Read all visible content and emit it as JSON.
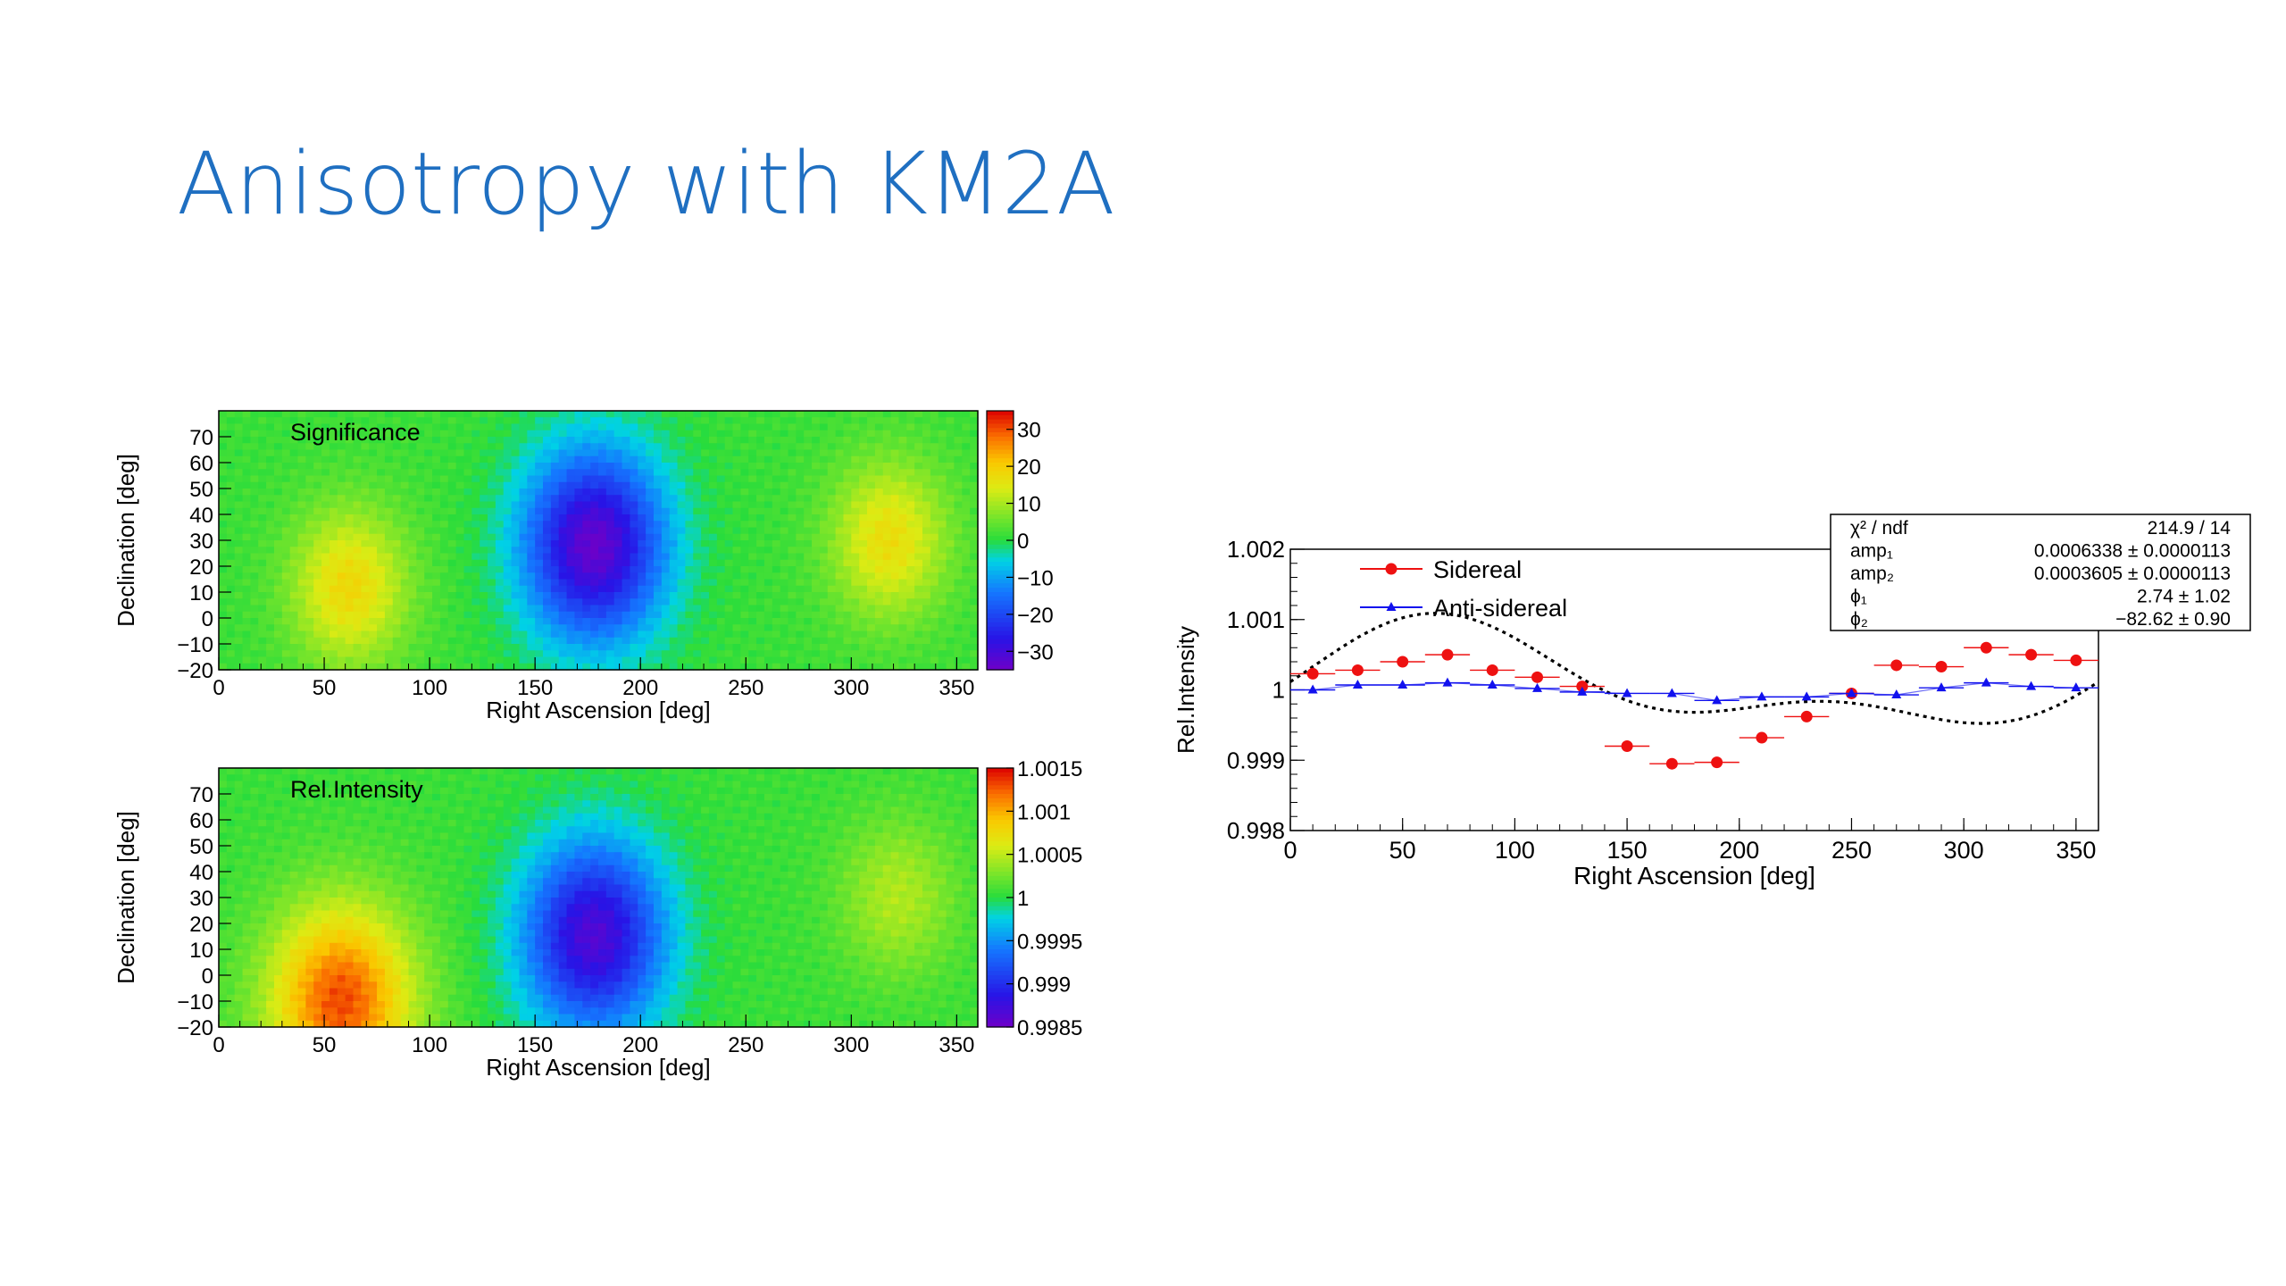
{
  "slide": {
    "title": "Anisotropy with KM2A"
  },
  "chart_data": [
    {
      "type": "heatmap",
      "title": "Significance",
      "xlabel": "Right Ascension [deg]",
      "ylabel": "Declination [deg]",
      "xlim": [
        0,
        360
      ],
      "ylim": [
        -20,
        80
      ],
      "x_ticks": [
        "0",
        "50",
        "100",
        "150",
        "200",
        "250",
        "300",
        "350"
      ],
      "y_ticks": [
        "70",
        "60",
        "50",
        "40",
        "30",
        "20",
        "10",
        "0",
        "−10",
        "−20"
      ],
      "colorbar": {
        "range": [
          -35,
          35
        ],
        "ticks": [
          "30",
          "20",
          "10",
          "0",
          "−10",
          "−20",
          "−30"
        ]
      },
      "features": [
        {
          "ra": 62,
          "dec": 12,
          "value": 18
        },
        {
          "ra": 178,
          "dec": 28,
          "value": -34
        },
        {
          "ra": 318,
          "dec": 30,
          "value": 17
        }
      ]
    },
    {
      "type": "heatmap",
      "title": "Rel.Intensity",
      "xlabel": "Right Ascension [deg]",
      "ylabel": "Declination [deg]",
      "xlim": [
        0,
        360
      ],
      "ylim": [
        -20,
        80
      ],
      "x_ticks": [
        "0",
        "50",
        "100",
        "150",
        "200",
        "250",
        "300",
        "350"
      ],
      "y_ticks": [
        "70",
        "60",
        "50",
        "40",
        "30",
        "20",
        "10",
        "0",
        "−10",
        "−20"
      ],
      "colorbar": {
        "range": [
          0.9985,
          1.0015
        ],
        "ticks": [
          "1.0015",
          "1.001",
          "1.0005",
          "1",
          "0.9995",
          "0.999",
          "0.9985"
        ]
      },
      "features": [
        {
          "ra": 58,
          "dec": -10,
          "value": 1.0013
        },
        {
          "ra": 178,
          "dec": 15,
          "value": 0.99865
        },
        {
          "ra": 322,
          "dec": 30,
          "value": 1.00045
        }
      ]
    },
    {
      "type": "scatter",
      "xlabel": "Right Ascension [deg]",
      "ylabel": "Rel.Intensity",
      "xlim": [
        0,
        360
      ],
      "ylim": [
        0.998,
        1.002
      ],
      "x_ticks": [
        "0",
        "50",
        "100",
        "150",
        "200",
        "250",
        "300",
        "350"
      ],
      "y_ticks": [
        "1.002",
        "1.001",
        "1",
        "0.999",
        "0.998"
      ],
      "x": [
        10,
        30,
        50,
        70,
        90,
        110,
        130,
        150,
        170,
        190,
        210,
        230,
        250,
        270,
        290,
        310,
        330,
        350
      ],
      "series": [
        {
          "name": "Sidereal",
          "color": "#ee1111",
          "values": [
            1.00023,
            1.00028,
            1.0004,
            1.0005,
            1.00028,
            1.00018,
            1.00005,
            0.9992,
            0.99895,
            0.99897,
            0.99932,
            0.99962,
            0.99995,
            1.00035,
            1.00033,
            1.0006,
            1.0005,
            1.00042
          ]
        },
        {
          "name": "Anti-sidereal",
          "color": "#1111ee",
          "values": [
            1.0,
            1.00007,
            1.00007,
            1.0001,
            1.00007,
            1.00002,
            0.99997,
            0.99995,
            0.99995,
            0.99985,
            0.9999,
            0.9999,
            0.99995,
            0.99993,
            1.00003,
            1.0001,
            1.00005,
            1.00003
          ]
        }
      ],
      "fit": {
        "p0": 1.0001,
        "amp1": 0.0006338,
        "amp2": 0.0003605,
        "phi1": 2.74,
        "phi2": -82.62
      },
      "stats": [
        {
          "label": "χ² / ndf",
          "value": "214.9 / 14"
        },
        {
          "label": "amp₁",
          "value": "0.0006338 ± 0.0000113"
        },
        {
          "label": "amp₂",
          "value": "0.0003605 ± 0.0000113"
        },
        {
          "label": "ϕ₁",
          "value": "2.74 ± 1.02"
        },
        {
          "label": "ϕ₂",
          "value": "−82.62 ± 0.90"
        }
      ],
      "legend_position": "top-left"
    }
  ]
}
